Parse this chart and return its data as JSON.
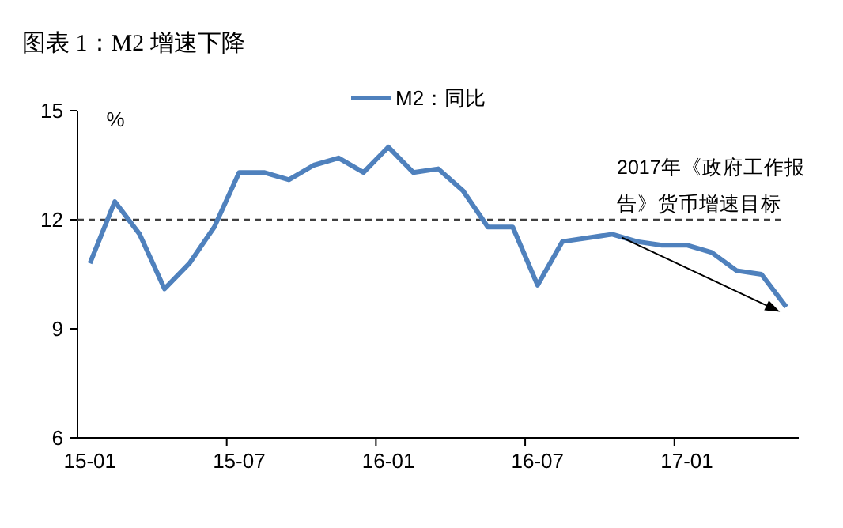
{
  "chart_data": {
    "type": "line",
    "title": "图表 1：M2 增速下降",
    "ylabel": "%",
    "categories": [
      "15-01",
      null,
      null,
      null,
      null,
      null,
      "15-07",
      null,
      null,
      null,
      null,
      null,
      "16-01",
      null,
      null,
      null,
      null,
      null,
      "16-07",
      null,
      null,
      null,
      null,
      null,
      "17-01",
      null,
      null,
      null,
      null
    ],
    "series": [
      {
        "name": "M2：同比",
        "color": "#4f81bd",
        "values": [
          10.8,
          12.5,
          11.6,
          10.1,
          10.8,
          11.8,
          13.3,
          13.3,
          13.1,
          13.5,
          13.7,
          13.3,
          14.0,
          13.3,
          13.4,
          12.8,
          11.8,
          11.8,
          10.2,
          11.4,
          11.5,
          11.6,
          11.4,
          11.3,
          11.3,
          11.1,
          10.6,
          10.5,
          9.6
        ]
      }
    ],
    "ylim": [
      6,
      15
    ],
    "yticks": [
      6,
      9,
      12,
      15
    ],
    "grid": false,
    "legend": "top",
    "marker": "none",
    "line_style": "solid",
    "ref_lines": [
      {
        "axis": "y",
        "value": 12,
        "label": "2017年《政府工作报告》货币增速目标",
        "color": "#404040",
        "line_style": "dashed"
      }
    ]
  }
}
